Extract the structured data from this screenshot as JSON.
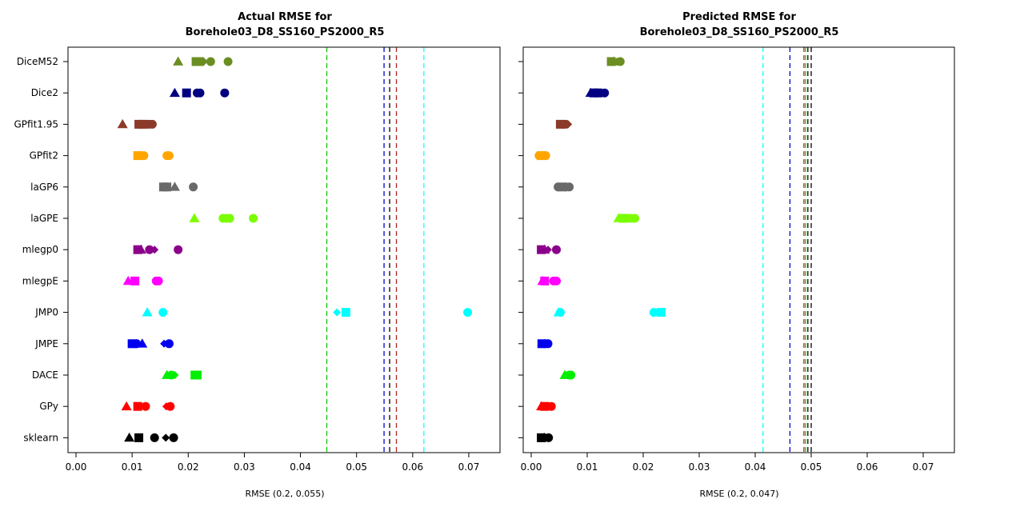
{
  "chart_data": [
    {
      "type": "scatter",
      "title": "Actual RMSE for",
      "subtitle": "Borehole03_D8_SS160_PS2000_R5",
      "xlabel": "RMSE (0.2, 0.055)",
      "xlim": [
        0,
        0.072
      ],
      "xticks": [
        "0.00",
        "0.01",
        "0.02",
        "0.03",
        "0.04",
        "0.05",
        "0.06",
        "0.07"
      ],
      "grid": false,
      "vlines": [
        {
          "x": 0.0447,
          "color": "#00cc00"
        },
        {
          "x": 0.0549,
          "color": "#0000cd"
        },
        {
          "x": 0.0559,
          "color": "#000000"
        },
        {
          "x": 0.0571,
          "color": "#b22222"
        },
        {
          "x": 0.062,
          "color": "#00ffff"
        }
      ],
      "categories": [
        "DiceM52",
        "Dice2",
        "GPfit1.95",
        "GPfit2",
        "laGP6",
        "laGPE",
        "mlegp0",
        "mlegpE",
        "JMP0",
        "JMPE",
        "DACE",
        "GPy",
        "sklearn"
      ],
      "series": [
        {
          "category": "DiceM52",
          "color": "#6b8e23",
          "points": [
            {
              "x": 0.0182,
              "s": "triangle"
            },
            {
              "x": 0.0214,
              "s": "square"
            },
            {
              "x": 0.022,
              "s": "square"
            },
            {
              "x": 0.0228,
              "s": "diamond"
            },
            {
              "x": 0.024,
              "s": "circle"
            },
            {
              "x": 0.0271,
              "s": "circle"
            }
          ]
        },
        {
          "category": "Dice2",
          "color": "#000080",
          "points": [
            {
              "x": 0.0176,
              "s": "triangle"
            },
            {
              "x": 0.0197,
              "s": "square"
            },
            {
              "x": 0.0216,
              "s": "circle"
            },
            {
              "x": 0.0221,
              "s": "circle"
            },
            {
              "x": 0.0265,
              "s": "circle"
            }
          ]
        },
        {
          "category": "GPfit1.95",
          "color": "#8b3a2a",
          "points": [
            {
              "x": 0.0083,
              "s": "triangle"
            },
            {
              "x": 0.0112,
              "s": "square"
            },
            {
              "x": 0.012,
              "s": "square"
            },
            {
              "x": 0.0126,
              "s": "circle"
            },
            {
              "x": 0.0131,
              "s": "circle"
            },
            {
              "x": 0.0136,
              "s": "circle"
            }
          ]
        },
        {
          "category": "GPfit2",
          "color": "#ffa500",
          "points": [
            {
              "x": 0.011,
              "s": "square"
            },
            {
              "x": 0.0115,
              "s": "circle"
            },
            {
              "x": 0.0121,
              "s": "circle"
            },
            {
              "x": 0.0162,
              "s": "circle"
            },
            {
              "x": 0.0166,
              "s": "circle"
            }
          ]
        },
        {
          "category": "laGP6",
          "color": "#696969",
          "points": [
            {
              "x": 0.0156,
              "s": "square"
            },
            {
              "x": 0.0162,
              "s": "square"
            },
            {
              "x": 0.0176,
              "s": "triangle"
            },
            {
              "x": 0.0209,
              "s": "circle"
            }
          ]
        },
        {
          "category": "laGPE",
          "color": "#7cfc00",
          "points": [
            {
              "x": 0.0211,
              "s": "triangle"
            },
            {
              "x": 0.0262,
              "s": "circle"
            },
            {
              "x": 0.0268,
              "s": "circle"
            },
            {
              "x": 0.0274,
              "s": "circle"
            },
            {
              "x": 0.0316,
              "s": "circle"
            }
          ]
        },
        {
          "category": "mlegp0",
          "color": "#8b008b",
          "points": [
            {
              "x": 0.011,
              "s": "square"
            },
            {
              "x": 0.0116,
              "s": "triangle"
            },
            {
              "x": 0.0131,
              "s": "circle"
            },
            {
              "x": 0.014,
              "s": "diamond"
            },
            {
              "x": 0.0182,
              "s": "circle"
            }
          ]
        },
        {
          "category": "mlegpE",
          "color": "#ff00ff",
          "points": [
            {
              "x": 0.0093,
              "s": "triangle"
            },
            {
              "x": 0.0105,
              "s": "square"
            },
            {
              "x": 0.0143,
              "s": "circle"
            },
            {
              "x": 0.0147,
              "s": "circle"
            }
          ]
        },
        {
          "category": "JMP0",
          "color": "#00ffff",
          "points": [
            {
              "x": 0.0127,
              "s": "triangle"
            },
            {
              "x": 0.0155,
              "s": "circle"
            },
            {
              "x": 0.0465,
              "s": "diamond"
            },
            {
              "x": 0.0481,
              "s": "square"
            },
            {
              "x": 0.0698,
              "s": "circle"
            }
          ]
        },
        {
          "category": "JMPE",
          "color": "#0000ee",
          "points": [
            {
              "x": 0.01,
              "s": "square"
            },
            {
              "x": 0.0108,
              "s": "circle"
            },
            {
              "x": 0.0118,
              "s": "triangle"
            },
            {
              "x": 0.0157,
              "s": "diamond"
            },
            {
              "x": 0.0166,
              "s": "circle"
            }
          ]
        },
        {
          "category": "DACE",
          "color": "#00ee00",
          "points": [
            {
              "x": 0.0162,
              "s": "triangle"
            },
            {
              "x": 0.017,
              "s": "circle"
            },
            {
              "x": 0.0176,
              "s": "diamond"
            },
            {
              "x": 0.0212,
              "s": "square"
            },
            {
              "x": 0.0216,
              "s": "square"
            }
          ]
        },
        {
          "category": "GPy",
          "color": "#ff0000",
          "points": [
            {
              "x": 0.009,
              "s": "triangle"
            },
            {
              "x": 0.011,
              "s": "square"
            },
            {
              "x": 0.0124,
              "s": "circle"
            },
            {
              "x": 0.0161,
              "s": "diamond"
            },
            {
              "x": 0.0168,
              "s": "circle"
            }
          ]
        },
        {
          "category": "sklearn",
          "color": "#000000",
          "points": [
            {
              "x": 0.0095,
              "s": "triangle"
            },
            {
              "x": 0.0112,
              "s": "square"
            },
            {
              "x": 0.014,
              "s": "circle"
            },
            {
              "x": 0.016,
              "s": "diamond"
            },
            {
              "x": 0.0174,
              "s": "circle"
            }
          ]
        }
      ]
    },
    {
      "type": "scatter",
      "title": "Predicted RMSE for",
      "subtitle": "Borehole03_D8_SS160_PS2000_R5",
      "xlabel": "RMSE (0.2, 0.047)",
      "xlim": [
        0,
        0.072
      ],
      "xticks": [
        "0.00",
        "0.01",
        "0.02",
        "0.03",
        "0.04",
        "0.05",
        "0.06",
        "0.07"
      ],
      "grid": false,
      "vlines": [
        {
          "x": 0.0414,
          "color": "#00ffff"
        },
        {
          "x": 0.0462,
          "color": "#0000cd"
        },
        {
          "x": 0.0487,
          "color": "#b22222"
        },
        {
          "x": 0.049,
          "color": "#00cc00"
        },
        {
          "x": 0.0494,
          "color": "#000000"
        },
        {
          "x": 0.05,
          "color": "#000000"
        }
      ],
      "categories": [
        "DiceM52",
        "Dice2",
        "GPfit1.95",
        "GPfit2",
        "laGP6",
        "laGPE",
        "mlegp0",
        "mlegpE",
        "JMP0",
        "JMPE",
        "DACE",
        "GPy",
        "sklearn"
      ],
      "series": [
        {
          "category": "DiceM52",
          "color": "#6b8e23",
          "points": [
            {
              "x": 0.0143,
              "s": "square"
            },
            {
              "x": 0.0148,
              "s": "triangle"
            },
            {
              "x": 0.0153,
              "s": "diamond"
            },
            {
              "x": 0.0159,
              "s": "circle"
            }
          ]
        },
        {
          "category": "Dice2",
          "color": "#000080",
          "points": [
            {
              "x": 0.0106,
              "s": "triangle"
            },
            {
              "x": 0.0112,
              "s": "square"
            },
            {
              "x": 0.0119,
              "s": "square"
            },
            {
              "x": 0.0131,
              "s": "circle"
            }
          ]
        },
        {
          "category": "GPfit1.95",
          "color": "#8b3a2a",
          "points": [
            {
              "x": 0.0052,
              "s": "square"
            },
            {
              "x": 0.0057,
              "s": "circle"
            },
            {
              "x": 0.0062,
              "s": "circle"
            },
            {
              "x": 0.0066,
              "s": "diamond"
            }
          ]
        },
        {
          "category": "GPfit2",
          "color": "#ffa500",
          "points": [
            {
              "x": 0.0014,
              "s": "circle"
            },
            {
              "x": 0.0018,
              "s": "square"
            },
            {
              "x": 0.0022,
              "s": "circle"
            },
            {
              "x": 0.0026,
              "s": "circle"
            }
          ]
        },
        {
          "category": "laGP6",
          "color": "#696969",
          "points": [
            {
              "x": 0.0048,
              "s": "circle"
            },
            {
              "x": 0.0055,
              "s": "square"
            },
            {
              "x": 0.0062,
              "s": "circle"
            },
            {
              "x": 0.0068,
              "s": "circle"
            }
          ]
        },
        {
          "category": "laGPE",
          "color": "#7cfc00",
          "points": [
            {
              "x": 0.0156,
              "s": "triangle"
            },
            {
              "x": 0.0165,
              "s": "square"
            },
            {
              "x": 0.0172,
              "s": "circle"
            },
            {
              "x": 0.0178,
              "s": "circle"
            },
            {
              "x": 0.0185,
              "s": "circle"
            }
          ]
        },
        {
          "category": "mlegp0",
          "color": "#8b008b",
          "points": [
            {
              "x": 0.0018,
              "s": "square"
            },
            {
              "x": 0.0024,
              "s": "triangle"
            },
            {
              "x": 0.003,
              "s": "diamond"
            },
            {
              "x": 0.0045,
              "s": "circle"
            }
          ]
        },
        {
          "category": "mlegpE",
          "color": "#ff00ff",
          "points": [
            {
              "x": 0.002,
              "s": "triangle"
            },
            {
              "x": 0.0024,
              "s": "square"
            },
            {
              "x": 0.004,
              "s": "circle"
            },
            {
              "x": 0.0045,
              "s": "circle"
            }
          ]
        },
        {
          "category": "JMP0",
          "color": "#00ffff",
          "points": [
            {
              "x": 0.0049,
              "s": "triangle"
            },
            {
              "x": 0.0052,
              "s": "circle"
            },
            {
              "x": 0.0219,
              "s": "circle"
            },
            {
              "x": 0.0225,
              "s": "diamond"
            },
            {
              "x": 0.0232,
              "s": "square"
            }
          ]
        },
        {
          "category": "JMPE",
          "color": "#0000ee",
          "points": [
            {
              "x": 0.0019,
              "s": "square"
            },
            {
              "x": 0.0024,
              "s": "circle"
            },
            {
              "x": 0.003,
              "s": "circle"
            }
          ]
        },
        {
          "category": "DACE",
          "color": "#00ee00",
          "points": [
            {
              "x": 0.006,
              "s": "triangle"
            },
            {
              "x": 0.0064,
              "s": "diamond"
            },
            {
              "x": 0.0068,
              "s": "circle"
            },
            {
              "x": 0.0071,
              "s": "circle"
            }
          ]
        },
        {
          "category": "GPy",
          "color": "#ff0000",
          "points": [
            {
              "x": 0.0018,
              "s": "triangle"
            },
            {
              "x": 0.0024,
              "s": "square"
            },
            {
              "x": 0.003,
              "s": "diamond"
            },
            {
              "x": 0.0036,
              "s": "circle"
            }
          ]
        },
        {
          "category": "sklearn",
          "color": "#000000",
          "points": [
            {
              "x": 0.0018,
              "s": "square"
            },
            {
              "x": 0.0023,
              "s": "triangle"
            },
            {
              "x": 0.0027,
              "s": "diamond"
            },
            {
              "x": 0.0031,
              "s": "circle"
            }
          ]
        }
      ]
    }
  ]
}
